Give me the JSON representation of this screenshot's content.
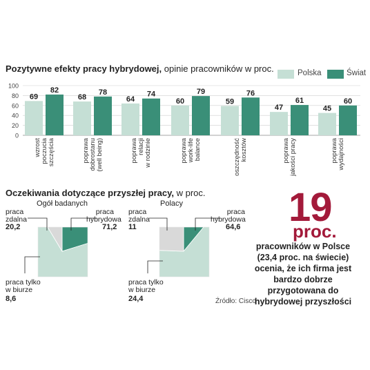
{
  "colors": {
    "polska": "#c5dfd5",
    "swiat": "#3a8f78",
    "accent": "#a31a3a",
    "gray": "#d9d9d9"
  },
  "heading1": {
    "bold": "Pozytywne efekty pracy hybrydowej,",
    "normal": "opinie pracowników w proc."
  },
  "legend": [
    "Polska",
    "Świat"
  ],
  "chart_data": [
    {
      "type": "bar",
      "title": "Pozytywne efekty pracy hybrydowej, opinie pracowników w proc.",
      "ylim": [
        0,
        100
      ],
      "yticks": [
        0,
        20,
        40,
        60,
        80,
        100
      ],
      "grid": true,
      "legend_position": "top-right",
      "categories": [
        "wzrost poczucia szczęścia",
        "poprawa dobrostanu (well being)",
        "poprawa relacji w rodzinie",
        "poprawa work-life balance",
        "oszczędność kosztów",
        "poprawa jakości pracy",
        "poprawa wydajności"
      ],
      "category_lines": [
        [
          "wzrost",
          "poczucia",
          "szczęścia"
        ],
        [
          "poprawa",
          "dobrostanu",
          "(well being)"
        ],
        [
          "poprawa",
          "relacji",
          "w rodzinie"
        ],
        [
          "poprawa",
          "work-life",
          "balance"
        ],
        [
          "oszczędność",
          "kosztów"
        ],
        [
          "poprawa",
          "jakości pracy"
        ],
        [
          "poprawa",
          "wydajności"
        ]
      ],
      "series": [
        {
          "name": "Polska",
          "values": [
            69,
            68,
            64,
            60,
            59,
            47,
            45
          ]
        },
        {
          "name": "Świat",
          "values": [
            82,
            78,
            74,
            79,
            76,
            61,
            60
          ]
        }
      ]
    },
    {
      "type": "pie",
      "title": "Ogół badanych",
      "slices": [
        {
          "label": "praca zdalna",
          "value": 20.2
        },
        {
          "label": "praca hybrydowa",
          "value": 71.2
        },
        {
          "label": "praca tylko w biurze",
          "value": 8.6
        }
      ]
    },
    {
      "type": "pie",
      "title": "Polacy",
      "slices": [
        {
          "label": "praca zdalna",
          "value": 11
        },
        {
          "label": "praca hybrydowa",
          "value": 64.6
        },
        {
          "label": "praca tylko w biurze",
          "value": 24.4
        }
      ]
    }
  ],
  "heading2": {
    "bold": "Oczekiwania dotyczące przyszłej pracy,",
    "normal": "w proc."
  },
  "pie1": {
    "title": "Ogół badanych",
    "zdalna_label": [
      "praca",
      "zdalna"
    ],
    "zdalna_value": "20,2",
    "hybrydowa_label": [
      "praca",
      "hybrydowa"
    ],
    "hybrydowa_value": "71,2",
    "biuro_label": [
      "praca tylko",
      "w biurze"
    ],
    "biuro_value": "8,6"
  },
  "pie2": {
    "title": "Polacy",
    "zdalna_label": [
      "praca",
      "zdalna"
    ],
    "zdalna_value": "11",
    "hybrydowa_label": [
      "praca",
      "hybrydowa"
    ],
    "hybrydowa_value": "64,6",
    "biuro_label": [
      "praca tylko",
      "w biurze"
    ],
    "biuro_value": "24,4"
  },
  "source": "Źródło: Cisco",
  "highlight": {
    "number": "19",
    "unit": "proc.",
    "lines": [
      "pracowników w Polsce",
      "(23,4 proc. na świecie)",
      "ocenia, że ich firma jest",
      "bardzo dobrze",
      "przygotowana do",
      "hybrydowej przyszłości"
    ]
  }
}
